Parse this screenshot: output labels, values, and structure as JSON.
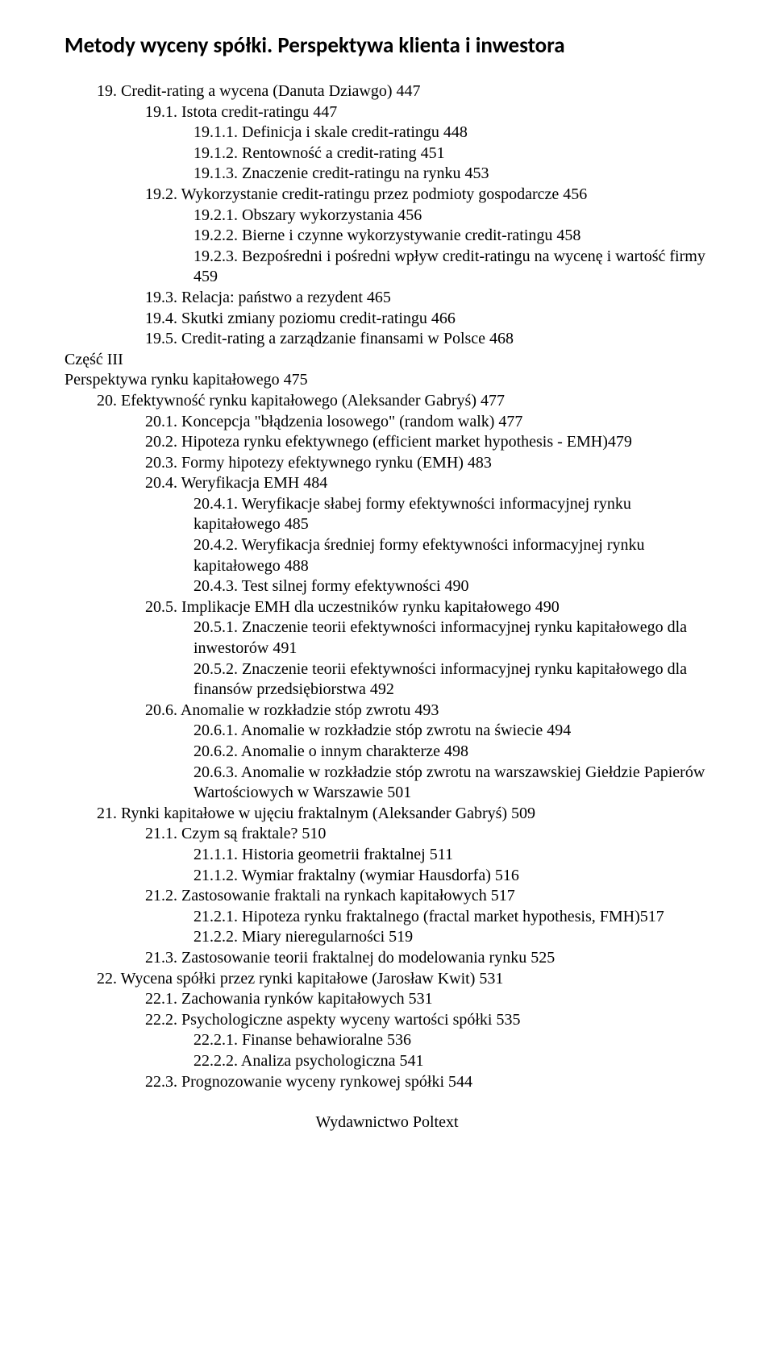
{
  "title": "Metody wyceny spółki. Perspektywa klienta i inwestora",
  "footer": "Wydawnictwo Poltext",
  "lines": [
    {
      "lvl": "l1",
      "text": "19. Credit-rating a wycena (Danuta Dziawgo) 447"
    },
    {
      "lvl": "l2",
      "text": "19.1. Istota credit-ratingu 447"
    },
    {
      "lvl": "l3",
      "text": "19.1.1. Definicja i skale credit-ratingu 448"
    },
    {
      "lvl": "l3",
      "text": "19.1.2. Rentowność a credit-rating 451"
    },
    {
      "lvl": "l3",
      "text": "19.1.3. Znaczenie credit-ratingu na rynku 453"
    },
    {
      "lvl": "l2",
      "text": "19.2. Wykorzystanie credit-ratingu przez podmioty gospodarcze 456"
    },
    {
      "lvl": "l3",
      "text": "19.2.1. Obszary wykorzystania 456"
    },
    {
      "lvl": "l3",
      "text": "19.2.2. Bierne i czynne wykorzystywanie credit-ratingu 458"
    },
    {
      "lvl": "l3",
      "text": "19.2.3. Bezpośredni i pośredni wpływ credit-ratingu na wycenę i wartość firmy 459"
    },
    {
      "lvl": "l2",
      "text": "19.3. Relacja: państwo a rezydent 465"
    },
    {
      "lvl": "l2",
      "text": "19.4. Skutki zmiany poziomu credit-ratingu 466"
    },
    {
      "lvl": "l2",
      "text": "19.5. Credit-rating a zarządzanie finansami w Polsce 468"
    },
    {
      "lvl": "l0",
      "text": "Część III"
    },
    {
      "lvl": "l0",
      "text": "Perspektywa rynku kapitałowego 475"
    },
    {
      "lvl": "l1",
      "text": "20. Efektywność rynku kapitałowego (Aleksander Gabryś) 477"
    },
    {
      "lvl": "l2",
      "text": "20.1. Koncepcja \"błądzenia losowego\" (random walk) 477"
    },
    {
      "lvl": "l2",
      "text": "20.2. Hipoteza rynku efektywnego (efficient market hypothesis - EMH)479"
    },
    {
      "lvl": "l2",
      "text": "20.3. Formy hipotezy efektywnego rynku (EMH) 483"
    },
    {
      "lvl": "l2",
      "text": "20.4. Weryfikacja EMH 484"
    },
    {
      "lvl": "l3",
      "text": "20.4.1. Weryfikacje słabej formy efektywności informacyjnej rynku kapitałowego 485"
    },
    {
      "lvl": "l3",
      "text": "20.4.2. Weryfikacja średniej formy efektywności informacyjnej rynku kapitałowego 488"
    },
    {
      "lvl": "l3",
      "text": "20.4.3. Test silnej formy efektywności 490"
    },
    {
      "lvl": "l2",
      "text": "20.5. Implikacje EMH dla uczestników rynku kapitałowego 490"
    },
    {
      "lvl": "l3",
      "text": "20.5.1. Znaczenie teorii efektywności informacyjnej rynku kapitałowego dla inwestorów 491"
    },
    {
      "lvl": "l3",
      "text": "20.5.2. Znaczenie teorii efektywności informacyjnej rynku kapitałowego dla finansów przedsiębiorstwa 492"
    },
    {
      "lvl": "l2",
      "text": "20.6. Anomalie w rozkładzie stóp zwrotu 493"
    },
    {
      "lvl": "l3",
      "text": "20.6.1. Anomalie w rozkładzie stóp zwrotu na świecie 494"
    },
    {
      "lvl": "l3",
      "text": "20.6.2. Anomalie o innym charakterze 498"
    },
    {
      "lvl": "l3",
      "text": "20.6.3. Anomalie w rozkładzie stóp zwrotu na warszawskiej Giełdzie Papierów Wartościowych w Warszawie 501"
    },
    {
      "lvl": "l1",
      "text": "21. Rynki kapitałowe w ujęciu fraktalnym (Aleksander Gabryś) 509"
    },
    {
      "lvl": "l2",
      "text": "21.1. Czym są fraktale? 510"
    },
    {
      "lvl": "l3",
      "text": "21.1.1. Historia geometrii fraktalnej 511"
    },
    {
      "lvl": "l3",
      "text": "21.1.2. Wymiar fraktalny (wymiar Hausdorfa) 516"
    },
    {
      "lvl": "l2",
      "text": "21.2. Zastosowanie fraktali na rynkach kapitałowych 517"
    },
    {
      "lvl": "l3",
      "text": "21.2.1. Hipoteza rynku fraktalnego (fractal market hypothesis, FMH)517"
    },
    {
      "lvl": "l3",
      "text": "21.2.2. Miary nieregularności 519"
    },
    {
      "lvl": "l2",
      "text": "21.3. Zastosowanie teorii fraktalnej do modelowania rynku 525"
    },
    {
      "lvl": "l1",
      "text": "22. Wycena spółki przez rynki kapitałowe (Jarosław Kwit) 531"
    },
    {
      "lvl": "l2",
      "text": "22.1. Zachowania rynków kapitałowych 531"
    },
    {
      "lvl": "l2",
      "text": "22.2. Psychologiczne aspekty wyceny wartości spółki 535"
    },
    {
      "lvl": "l3",
      "text": "22.2.1. Finanse behawioralne 536"
    },
    {
      "lvl": "l3",
      "text": "22.2.2. Analiza psychologiczna 541"
    },
    {
      "lvl": "l2",
      "text": "22.3. Prognozowanie wyceny rynkowej spółki 544"
    }
  ]
}
